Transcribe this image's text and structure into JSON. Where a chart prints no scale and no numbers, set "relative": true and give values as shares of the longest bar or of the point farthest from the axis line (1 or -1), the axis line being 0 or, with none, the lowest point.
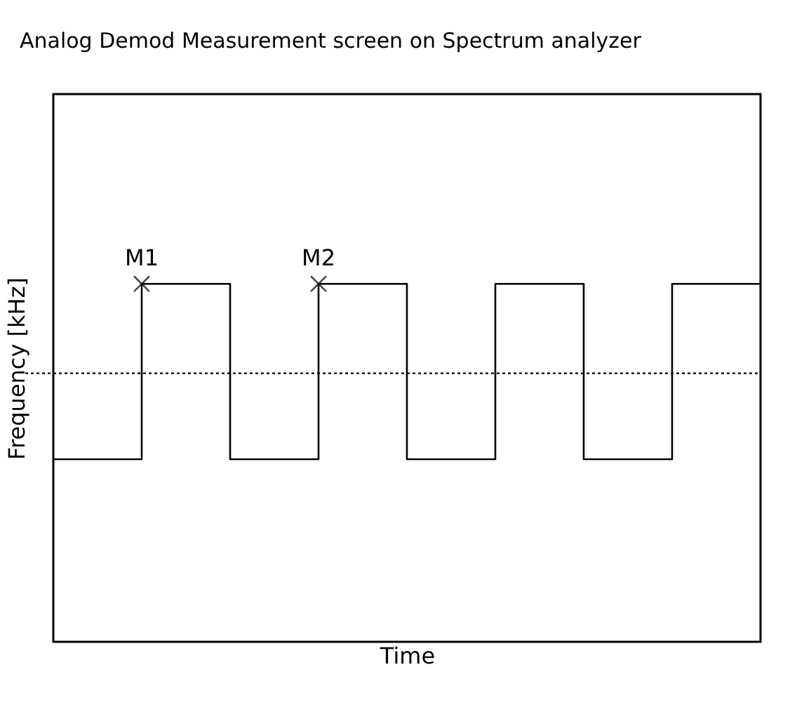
{
  "chart_data": {
    "type": "step",
    "title": "Analog Demod Measurement screen on Spectrum analyzer",
    "xlabel": "Time",
    "ylabel": "Frequency [kHz]",
    "relative": true,
    "categories": [
      null,
      null,
      null,
      null,
      null,
      null,
      null,
      null,
      null
    ],
    "series": [
      {
        "color": "#000000",
        "values": [
          0.51,
          1,
          0.51,
          1,
          0.51,
          1,
          0.51,
          1,
          1
        ]
      }
    ],
    "ref_lines": [
      {
        "axis": "y",
        "value": 0.75,
        "color": "#000000",
        "line_style": "dotted"
      }
    ],
    "annotations": [
      {
        "text": "M1",
        "y": 1
      },
      {
        "text": "M2",
        "y": 1
      }
    ]
  }
}
